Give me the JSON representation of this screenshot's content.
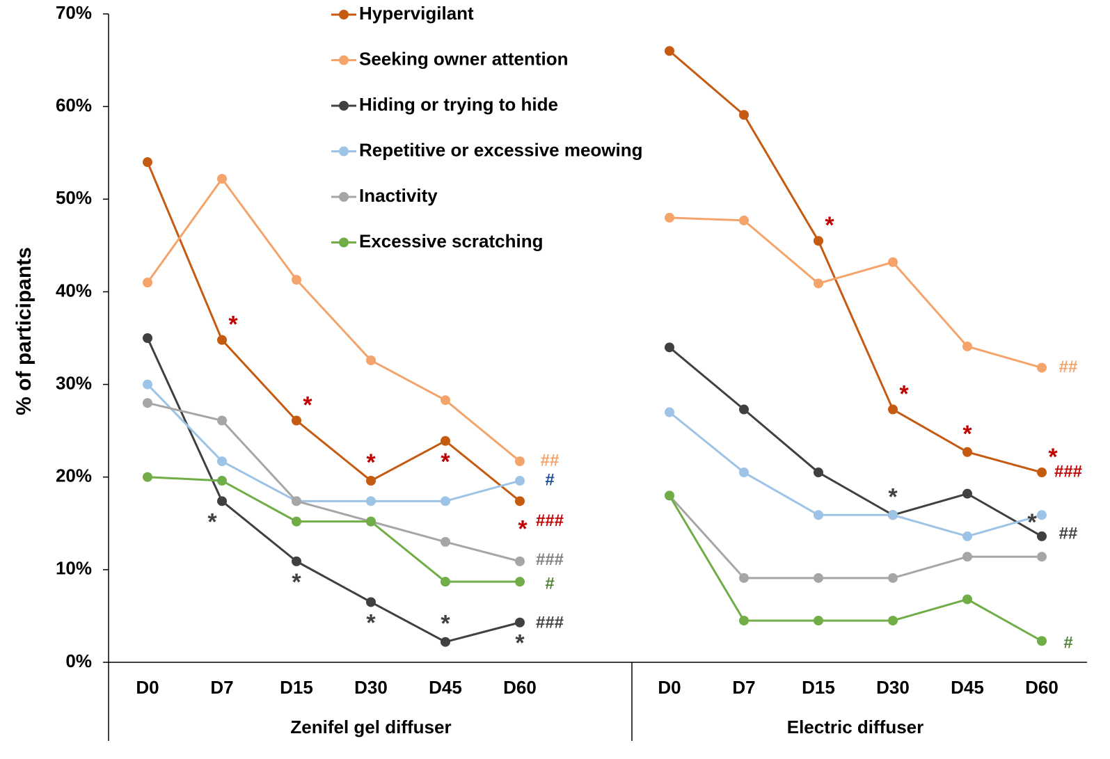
{
  "chart_data": {
    "type": "line",
    "ylabel": "% of participants",
    "ylim": [
      0,
      70
    ],
    "yticks": [
      "0%",
      "10%",
      "20%",
      "30%",
      "40%",
      "50%",
      "60%",
      "70%"
    ],
    "categories": [
      "D0",
      "D7",
      "D15",
      "D30",
      "D45",
      "D60"
    ],
    "groups": [
      {
        "name": "Zenifel gel diffuser",
        "series": [
          {
            "name": "Hypervigilant",
            "color": "#c55a11",
            "values": [
              54,
              34.8,
              26.1,
              19.6,
              23.9,
              17.4
            ]
          },
          {
            "name": "Seeking owner attention",
            "color": "#f4a46a",
            "values": [
              41,
              52.2,
              41.3,
              32.6,
              28.3,
              21.7
            ]
          },
          {
            "name": "Hiding or trying to hide",
            "color": "#404040",
            "values": [
              35,
              17.4,
              10.9,
              6.5,
              2.2,
              4.3
            ]
          },
          {
            "name": "Repetitive or excessive meowing",
            "color": "#9dc3e6",
            "values": [
              30,
              21.7,
              17.4,
              17.4,
              17.4,
              19.6
            ]
          },
          {
            "name": "Inactivity",
            "color": "#a6a6a6",
            "values": [
              28,
              26.1,
              17.4,
              15.2,
              13.0,
              10.9
            ]
          },
          {
            "name": "Excessive scratching",
            "color": "#70ad47",
            "values": [
              20,
              19.6,
              15.2,
              15.2,
              8.7,
              8.7
            ]
          }
        ]
      },
      {
        "name": "Electric diffuser",
        "series": [
          {
            "name": "Hypervigilant",
            "color": "#c55a11",
            "values": [
              66,
              59.1,
              45.5,
              27.3,
              22.7,
              20.5
            ]
          },
          {
            "name": "Seeking owner attention",
            "color": "#f4a46a",
            "values": [
              48,
              47.7,
              40.9,
              43.2,
              34.1,
              31.8
            ]
          },
          {
            "name": "Hiding or trying to hide",
            "color": "#404040",
            "values": [
              34,
              27.3,
              20.5,
              15.9,
              18.2,
              13.6
            ]
          },
          {
            "name": "Repetitive or excessive meowing",
            "color": "#9dc3e6",
            "values": [
              27,
              20.5,
              15.9,
              15.9,
              13.6,
              15.9
            ]
          },
          {
            "name": "Inactivity",
            "color": "#a6a6a6",
            "values": [
              18,
              9.1,
              9.1,
              9.1,
              11.4,
              11.4
            ]
          },
          {
            "name": "Excessive scratching",
            "color": "#70ad47",
            "values": [
              18,
              4.5,
              4.5,
              4.5,
              6.8,
              2.3
            ]
          }
        ]
      }
    ],
    "annotations": [
      {
        "group": 0,
        "series": "Hypervigilant",
        "cat": "D7",
        "text": "*",
        "color": "#c00000",
        "place": "above-right"
      },
      {
        "group": 0,
        "series": "Hypervigilant",
        "cat": "D15",
        "text": "*",
        "color": "#c00000",
        "place": "above-right"
      },
      {
        "group": 0,
        "series": "Hypervigilant",
        "cat": "D30",
        "text": "*",
        "color": "#c00000",
        "place": "above"
      },
      {
        "group": 0,
        "series": "Hypervigilant",
        "cat": "D45",
        "text": "*",
        "color": "#c00000",
        "place": "below"
      },
      {
        "group": 0,
        "series": "Hypervigilant",
        "cat": "D60",
        "text": "*",
        "color": "#c00000",
        "place": "below-right"
      },
      {
        "group": 0,
        "series": "Hiding or trying to hide",
        "cat": "D7",
        "text": "*",
        "color": "#404040",
        "place": "below-left"
      },
      {
        "group": 0,
        "series": "Hiding or trying to hide",
        "cat": "D15",
        "text": "*",
        "color": "#404040",
        "place": "below"
      },
      {
        "group": 0,
        "series": "Hiding or trying to hide",
        "cat": "D30",
        "text": "*",
        "color": "#404040",
        "place": "below"
      },
      {
        "group": 0,
        "series": "Hiding or trying to hide",
        "cat": "D45",
        "text": "*",
        "color": "#404040",
        "place": "above"
      },
      {
        "group": 0,
        "series": "Hiding or trying to hide",
        "cat": "D60",
        "text": "*",
        "color": "#404040",
        "place": "below"
      },
      {
        "group": 1,
        "series": "Hypervigilant",
        "cat": "D15",
        "text": "*",
        "color": "#c00000",
        "place": "above-right"
      },
      {
        "group": 1,
        "series": "Hypervigilant",
        "cat": "D30",
        "text": "*",
        "color": "#c00000",
        "place": "above-right"
      },
      {
        "group": 1,
        "series": "Hypervigilant",
        "cat": "D45",
        "text": "*",
        "color": "#c00000",
        "place": "above"
      },
      {
        "group": 1,
        "series": "Hypervigilant",
        "cat": "D60",
        "text": "*",
        "color": "#c00000",
        "place": "above-right"
      },
      {
        "group": 1,
        "series": "Hiding or trying to hide",
        "cat": "D30",
        "text": "*",
        "color": "#404040",
        "place": "above"
      },
      {
        "group": 1,
        "series": "Hiding or trying to hide",
        "cat": "D60",
        "text": "*",
        "color": "#404040",
        "place": "above-left"
      }
    ],
    "significance": [
      {
        "group": 0,
        "value": 21.7,
        "text": "##",
        "color": "#f4a46a"
      },
      {
        "group": 0,
        "value": 19.6,
        "text": "#",
        "color": "#1f4e99"
      },
      {
        "group": 0,
        "value": 15.2,
        "text": "###",
        "color": "#c00000"
      },
      {
        "group": 0,
        "value": 11.0,
        "text": "###",
        "color": "#808080"
      },
      {
        "group": 0,
        "value": 8.4,
        "text": "#",
        "color": "#548235"
      },
      {
        "group": 0,
        "value": 4.2,
        "text": "###",
        "color": "#404040"
      },
      {
        "group": 1,
        "value": 31.8,
        "text": "##",
        "color": "#f4a46a"
      },
      {
        "group": 1,
        "value": 20.5,
        "text": "###",
        "color": "#c00000"
      },
      {
        "group": 1,
        "value": 13.8,
        "text": "##",
        "color": "#404040"
      },
      {
        "group": 1,
        "value": 2.0,
        "text": "#",
        "color": "#548235"
      }
    ],
    "legend": [
      {
        "label": "Hypervigilant",
        "color": "#c55a11"
      },
      {
        "label": "Seeking owner attention",
        "color": "#f4a46a"
      },
      {
        "label": "Hiding or trying to hide",
        "color": "#404040"
      },
      {
        "label": "Repetitive or excessive meowing",
        "color": "#9dc3e6"
      },
      {
        "label": "Inactivity",
        "color": "#a6a6a6"
      },
      {
        "label": "Excessive scratching",
        "color": "#70ad47"
      }
    ],
    "legend_position": "top-center"
  }
}
